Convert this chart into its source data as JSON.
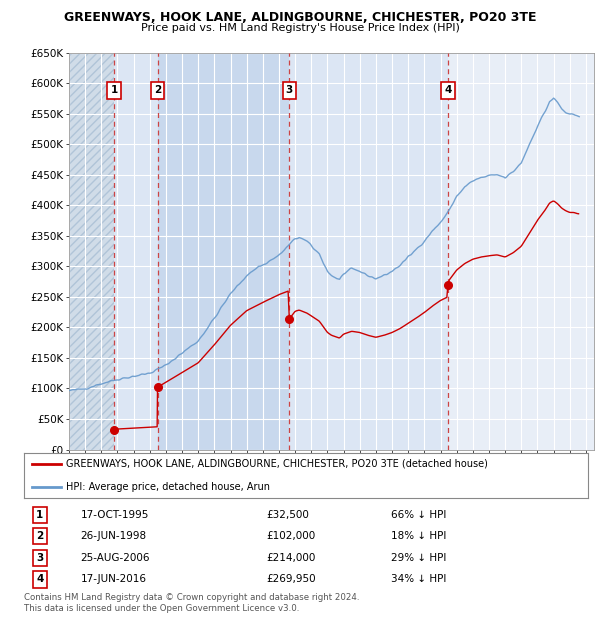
{
  "title": "GREENWAYS, HOOK LANE, ALDINGBOURNE, CHICHESTER, PO20 3TE",
  "subtitle": "Price paid vs. HM Land Registry's House Price Index (HPI)",
  "ylim": [
    0,
    650000
  ],
  "yticks": [
    0,
    50000,
    100000,
    150000,
    200000,
    250000,
    300000,
    350000,
    400000,
    450000,
    500000,
    550000,
    600000,
    650000
  ],
  "ytick_labels": [
    "£0",
    "£50K",
    "£100K",
    "£150K",
    "£200K",
    "£250K",
    "£300K",
    "£350K",
    "£400K",
    "£450K",
    "£500K",
    "£550K",
    "£600K",
    "£650K"
  ],
  "xlim_start": 1993.0,
  "xlim_end": 2025.5,
  "background_color": "#ffffff",
  "plot_bg_color": "#e8eef7",
  "band_light": "#dce6f4",
  "band_dark": "#c8d8ed",
  "hatch_color": "#b8c8dc",
  "grid_color": "#ffffff",
  "sale_color": "#cc0000",
  "hpi_color": "#6699cc",
  "sales": [
    {
      "year": 1995.79,
      "price": 32500,
      "label": "1"
    },
    {
      "year": 1998.48,
      "price": 102000,
      "label": "2"
    },
    {
      "year": 2006.64,
      "price": 214000,
      "label": "3"
    },
    {
      "year": 2016.46,
      "price": 269950,
      "label": "4"
    }
  ],
  "vlines": [
    1995.79,
    1998.48,
    2006.64,
    2016.46
  ],
  "sale_table": [
    {
      "num": "1",
      "date": "17-OCT-1995",
      "price": "£32,500",
      "hpi": "66% ↓ HPI"
    },
    {
      "num": "2",
      "date": "26-JUN-1998",
      "price": "£102,000",
      "hpi": "18% ↓ HPI"
    },
    {
      "num": "3",
      "date": "25-AUG-2006",
      "price": "£214,000",
      "hpi": "29% ↓ HPI"
    },
    {
      "num": "4",
      "date": "17-JUN-2016",
      "price": "£269,950",
      "hpi": "34% ↓ HPI"
    }
  ],
  "legend_sale_label": "GREENWAYS, HOOK LANE, ALDINGBOURNE, CHICHESTER, PO20 3TE (detached house)",
  "legend_hpi_label": "HPI: Average price, detached house, Arun",
  "footer": "Contains HM Land Registry data © Crown copyright and database right 2024.\nThis data is licensed under the Open Government Licence v3.0."
}
